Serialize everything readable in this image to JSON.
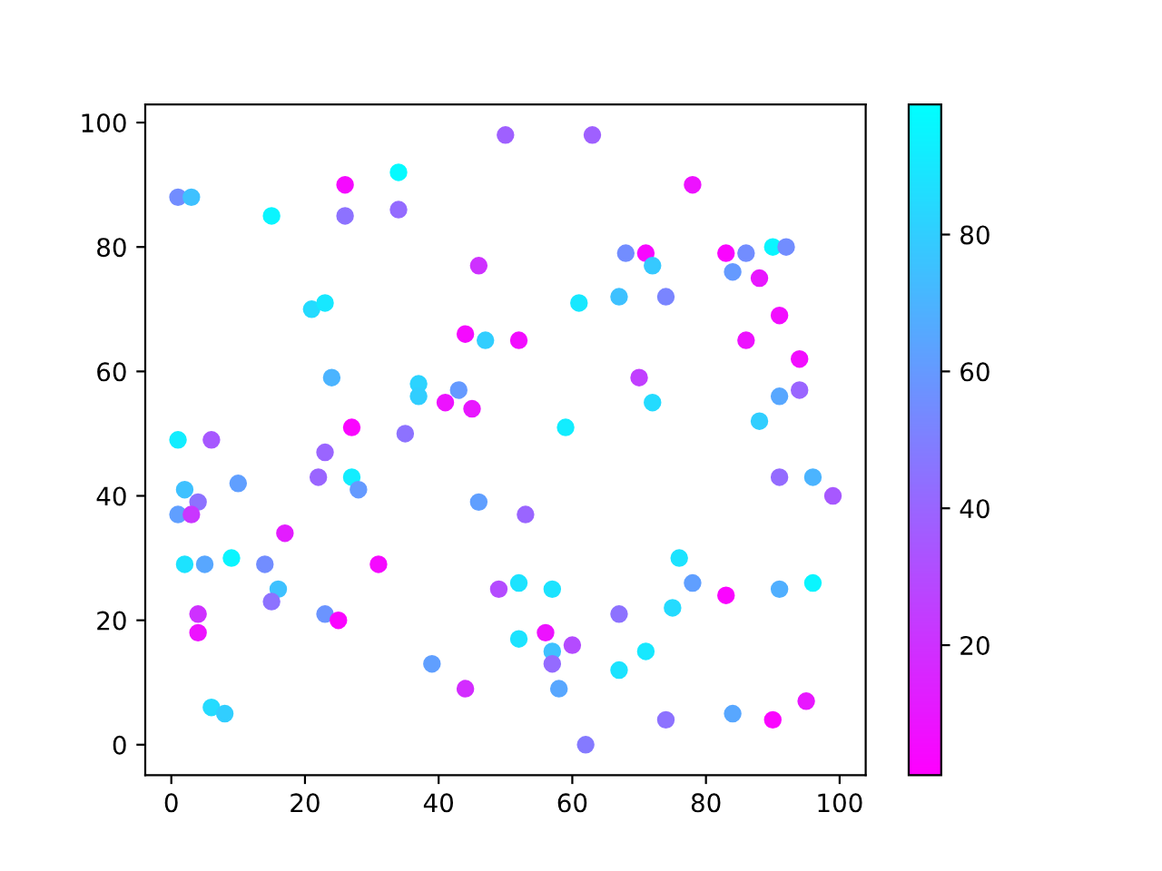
{
  "chart_data": {
    "type": "scatter",
    "marker": "circle",
    "grid": false,
    "x": [
      1,
      3,
      15,
      26,
      26,
      34,
      34,
      46,
      21,
      23,
      44,
      47,
      24,
      37,
      37,
      43,
      41,
      45,
      27,
      35,
      1,
      6,
      23,
      22,
      27,
      28,
      2,
      10,
      4,
      1,
      3,
      46,
      17,
      2,
      5,
      9,
      14,
      31,
      16,
      15,
      4,
      23,
      25,
      4,
      39,
      44,
      6,
      8,
      50,
      63,
      78,
      68,
      71,
      72,
      83,
      86,
      84,
      90,
      92,
      88,
      61,
      67,
      74,
      52,
      91,
      86,
      94,
      70,
      91,
      94,
      88,
      72,
      59,
      91,
      96,
      99,
      53,
      76,
      49,
      52,
      57,
      78,
      83,
      91,
      96,
      67,
      75,
      52,
      56,
      57,
      60,
      57,
      71,
      67,
      58,
      74,
      84,
      90,
      95,
      62
    ],
    "values": [
      88,
      88,
      85,
      90,
      85,
      92,
      86,
      77,
      70,
      71,
      66,
      65,
      59,
      58,
      56,
      57,
      55,
      54,
      51,
      50,
      49,
      49,
      47,
      43,
      43,
      41,
      41,
      42,
      39,
      37,
      37,
      39,
      34,
      29,
      29,
      30,
      29,
      29,
      25,
      23,
      21,
      21,
      20,
      18,
      13,
      9,
      6,
      5,
      98,
      98,
      90,
      79,
      79,
      77,
      79,
      79,
      76,
      80,
      80,
      75,
      71,
      72,
      72,
      65,
      69,
      65,
      62,
      59,
      56,
      57,
      52,
      55,
      51,
      43,
      43,
      40,
      37,
      30,
      25,
      26,
      25,
      26,
      24,
      25,
      26,
      21,
      22,
      17,
      18,
      15,
      16,
      13,
      15,
      12,
      9,
      4,
      5,
      4,
      7,
      0
    ],
    "cvalues": [
      55,
      75,
      95,
      5,
      45,
      97,
      42,
      20,
      85,
      90,
      5,
      80,
      70,
      82,
      80,
      60,
      8,
      10,
      3,
      45,
      92,
      35,
      40,
      40,
      92,
      60,
      75,
      62,
      45,
      62,
      22,
      62,
      12,
      88,
      65,
      95,
      55,
      5,
      75,
      45,
      20,
      58,
      3,
      8,
      62,
      18,
      85,
      80,
      38,
      38,
      8,
      55,
      4,
      78,
      3,
      55,
      60,
      95,
      55,
      10,
      90,
      75,
      52,
      6,
      6,
      8,
      6,
      25,
      65,
      40,
      80,
      85,
      92,
      42,
      70,
      35,
      40,
      88,
      30,
      88,
      88,
      62,
      3,
      68,
      95,
      45,
      85,
      88,
      8,
      75,
      30,
      42,
      90,
      88,
      65,
      45,
      65,
      3,
      10,
      48
    ],
    "xlim": [
      -3.9,
      103.9
    ],
    "ylim": [
      -4.9,
      102.9
    ],
    "xticks": [
      0,
      20,
      40,
      60,
      80,
      100
    ],
    "yticks": [
      0,
      20,
      40,
      60,
      80,
      100
    ],
    "clim": [
      1,
      99
    ],
    "cticks": [
      20,
      40,
      60,
      80
    ]
  }
}
